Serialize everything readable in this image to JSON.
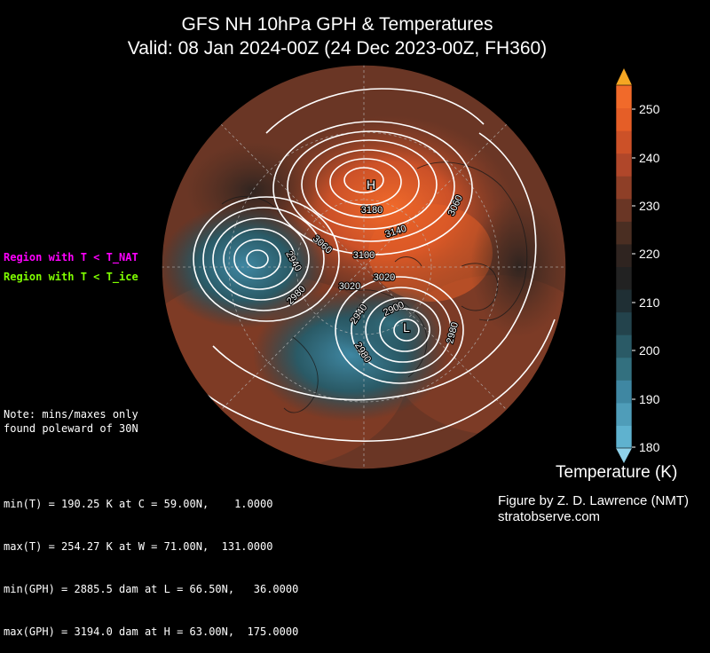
{
  "title": {
    "line1": "GFS NH 10hPa GPH & Temperatures",
    "line2": "Valid: 08 Jan 2024-00Z  (24 Dec 2023-00Z, FH360)"
  },
  "legend": {
    "nat_label": "Region with T < T_NAT",
    "nat_color": "#ff00ff",
    "ice_label": "Region with T < T_ice",
    "ice_color": "#7fff00"
  },
  "note": "Note: mins/maxes only\nfound poleward of 30N",
  "stats": [
    "min(T) = 190.25 K at C = 59.00N,    1.0000",
    "max(T) = 254.27 K at W = 71.00N,  131.0000",
    "min(GPH) = 2885.5 dam at L = 66.50N,   36.0000",
    "max(GPH) = 3194.0 dam at H = 63.00N,  175.0000"
  ],
  "colorbar": {
    "title": "Temperature (K)",
    "ticks": [
      "250",
      "240",
      "230",
      "220",
      "210",
      "200",
      "190",
      "180"
    ],
    "colors": [
      "#5fb2cf",
      "#4f9db9",
      "#3f87a2",
      "#33707f",
      "#2a5a66",
      "#23434c",
      "#1f2f34",
      "#222222",
      "#2f2420",
      "#4a2e22",
      "#6a3625",
      "#8e3f27",
      "#b0472a",
      "#cc5128",
      "#e55e27",
      "#f16a2a"
    ],
    "extend_low_color": "#8fd2ea",
    "extend_high_color": "#f5a623"
  },
  "map": {
    "markers": {
      "high": "H",
      "low": "L"
    },
    "contour_labels": [
      "3180",
      "3140",
      "3100",
      "3060",
      "3060",
      "3020",
      "3020",
      "2980",
      "2940",
      "2980",
      "2940",
      "2900",
      "2980",
      "2980"
    ]
  },
  "credit": {
    "line1": "Figure by Z. D. Lawrence (NMT)",
    "line2": "stratobserve.com"
  }
}
